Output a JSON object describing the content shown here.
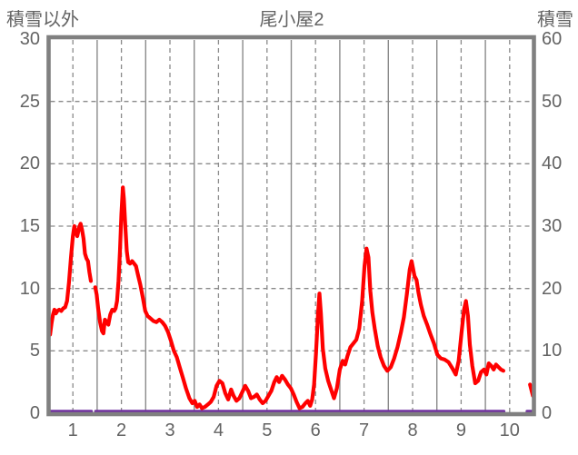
{
  "header": {
    "left_axis_title": "積雪以外",
    "title": "尾小屋2",
    "right_axis_title": "積雪"
  },
  "colors": {
    "series_main": "#FF0000",
    "series_snow": "#7030A0",
    "frame": "#808080",
    "grid": "#8A8A8A",
    "text": "#636363",
    "background": "#FFFFFF"
  },
  "chart_data": {
    "type": "line",
    "title": "尾小屋2",
    "left_axis": {
      "label": "積雪以外",
      "min": 0,
      "max": 30,
      "ticks": [
        30,
        25,
        20,
        15,
        10,
        5,
        0
      ]
    },
    "right_axis": {
      "label": "積雪",
      "min": 0,
      "max": 60,
      "ticks": [
        60,
        50,
        40,
        30,
        20,
        10,
        0
      ]
    },
    "x_axis": {
      "min": 0.5,
      "max": 10.5,
      "ticks": [
        1,
        2,
        3,
        4,
        5,
        6,
        7,
        8,
        9,
        10
      ]
    },
    "grid": {
      "horizontal_dashed_at": [
        5,
        10,
        15,
        20,
        25
      ],
      "vertical_dashed_at_ticks": true,
      "vertical_solid_at_half_boundaries": true,
      "legend": "none"
    },
    "series": [
      {
        "name": "積雪",
        "axis": "right",
        "color": "#7030A0",
        "stroke_width": 3.4,
        "segments": [
          [
            [
              0.53,
              0
            ],
            [
              1.38,
              0
            ]
          ],
          [
            [
              1.47,
              0
            ],
            [
              9.88,
              0
            ]
          ],
          [
            [
              10.36,
              0
            ],
            [
              10.5,
              0
            ]
          ]
        ]
      },
      {
        "name": "積雪以外",
        "axis": "left",
        "color": "#FF0000",
        "stroke_width": 4.2,
        "segments": [
          [
            [
              0.53,
              6.3
            ],
            [
              0.56,
              7.2
            ],
            [
              0.59,
              7.9
            ],
            [
              0.62,
              8.3
            ],
            [
              0.65,
              8.0
            ],
            [
              0.68,
              8.2
            ],
            [
              0.72,
              8.3
            ],
            [
              0.76,
              8.2
            ],
            [
              0.8,
              8.4
            ],
            [
              0.84,
              8.5
            ],
            [
              0.88,
              9.0
            ],
            [
              0.92,
              10.5
            ],
            [
              0.96,
              12.5
            ],
            [
              1.0,
              14.2
            ],
            [
              1.03,
              15.0
            ],
            [
              1.06,
              14.5
            ],
            [
              1.09,
              14.2
            ],
            [
              1.13,
              14.9
            ],
            [
              1.16,
              15.2
            ],
            [
              1.19,
              14.7
            ],
            [
              1.22,
              14.0
            ],
            [
              1.25,
              12.8
            ],
            [
              1.28,
              12.4
            ],
            [
              1.31,
              12.2
            ],
            [
              1.34,
              11.3
            ],
            [
              1.37,
              10.6
            ]
          ],
          [
            [
              1.46,
              10.1
            ],
            [
              1.49,
              9.5
            ],
            [
              1.52,
              8.4
            ],
            [
              1.56,
              7.3
            ],
            [
              1.6,
              6.6
            ],
            [
              1.63,
              6.4
            ],
            [
              1.66,
              7.5
            ],
            [
              1.7,
              7.3
            ],
            [
              1.73,
              7.1
            ],
            [
              1.77,
              7.9
            ],
            [
              1.81,
              8.3
            ],
            [
              1.85,
              8.2
            ],
            [
              1.88,
              8.4
            ],
            [
              1.91,
              9.0
            ],
            [
              1.94,
              10.6
            ],
            [
              1.97,
              13.0
            ],
            [
              2.0,
              16.0
            ],
            [
              2.03,
              18.1
            ],
            [
              2.05,
              17.2
            ],
            [
              2.08,
              15.0
            ],
            [
              2.11,
              13.0
            ],
            [
              2.14,
              12.1
            ],
            [
              2.18,
              12.0
            ],
            [
              2.22,
              12.2
            ],
            [
              2.26,
              12.0
            ],
            [
              2.3,
              11.8
            ],
            [
              2.34,
              11.1
            ],
            [
              2.39,
              10.3
            ],
            [
              2.44,
              9.3
            ],
            [
              2.49,
              8.2
            ],
            [
              2.54,
              7.8
            ],
            [
              2.6,
              7.6
            ],
            [
              2.66,
              7.4
            ],
            [
              2.72,
              7.3
            ],
            [
              2.78,
              7.5
            ],
            [
              2.84,
              7.3
            ],
            [
              2.9,
              7.0
            ],
            [
              2.96,
              6.5
            ],
            [
              3.02,
              5.8
            ],
            [
              3.08,
              5.0
            ],
            [
              3.14,
              4.5
            ],
            [
              3.2,
              3.7
            ],
            [
              3.27,
              2.8
            ],
            [
              3.33,
              2.0
            ],
            [
              3.4,
              1.2
            ],
            [
              3.46,
              0.8
            ],
            [
              3.51,
              1.0
            ],
            [
              3.56,
              0.5
            ],
            [
              3.61,
              0.7
            ],
            [
              3.66,
              0.4
            ],
            [
              3.72,
              0.5
            ],
            [
              3.78,
              0.7
            ],
            [
              3.84,
              0.9
            ],
            [
              3.9,
              1.3
            ],
            [
              3.96,
              2.2
            ],
            [
              4.02,
              2.6
            ],
            [
              4.08,
              2.4
            ],
            [
              4.14,
              1.6
            ],
            [
              4.2,
              1.1
            ],
            [
              4.26,
              1.9
            ],
            [
              4.31,
              1.4
            ],
            [
              4.37,
              1.0
            ],
            [
              4.43,
              1.2
            ],
            [
              4.49,
              1.7
            ],
            [
              4.55,
              2.2
            ],
            [
              4.61,
              1.8
            ],
            [
              4.67,
              1.2
            ],
            [
              4.73,
              1.3
            ],
            [
              4.79,
              1.5
            ],
            [
              4.85,
              1.1
            ],
            [
              4.91,
              0.8
            ],
            [
              4.97,
              1.0
            ],
            [
              5.03,
              1.4
            ],
            [
              5.09,
              1.8
            ],
            [
              5.15,
              2.5
            ],
            [
              5.2,
              2.9
            ],
            [
              5.25,
              2.5
            ],
            [
              5.31,
              3.0
            ],
            [
              5.37,
              2.7
            ],
            [
              5.43,
              2.3
            ],
            [
              5.49,
              2.0
            ],
            [
              5.55,
              1.5
            ],
            [
              5.61,
              0.9
            ],
            [
              5.67,
              0.4
            ],
            [
              5.73,
              0.5
            ],
            [
              5.79,
              0.8
            ],
            [
              5.84,
              1.0
            ],
            [
              5.89,
              0.6
            ],
            [
              5.93,
              1.1
            ],
            [
              5.97,
              2.3
            ],
            [
              6.01,
              4.8
            ],
            [
              6.05,
              7.9
            ],
            [
              6.08,
              9.6
            ],
            [
              6.11,
              8.0
            ],
            [
              6.15,
              5.2
            ],
            [
              6.2,
              3.6
            ],
            [
              6.26,
              2.6
            ],
            [
              6.32,
              1.9
            ],
            [
              6.38,
              1.2
            ],
            [
              6.44,
              2.0
            ],
            [
              6.5,
              3.5
            ],
            [
              6.56,
              4.2
            ],
            [
              6.61,
              3.9
            ],
            [
              6.66,
              4.6
            ],
            [
              6.72,
              5.3
            ],
            [
              6.78,
              5.6
            ],
            [
              6.84,
              5.9
            ],
            [
              6.9,
              6.8
            ],
            [
              6.96,
              9.0
            ],
            [
              7.01,
              11.8
            ],
            [
              7.05,
              13.2
            ],
            [
              7.09,
              12.5
            ],
            [
              7.13,
              9.8
            ],
            [
              7.17,
              8.1
            ],
            [
              7.22,
              6.8
            ],
            [
              7.28,
              5.4
            ],
            [
              7.34,
              4.5
            ],
            [
              7.41,
              3.8
            ],
            [
              7.48,
              3.4
            ],
            [
              7.55,
              3.7
            ],
            [
              7.62,
              4.4
            ],
            [
              7.69,
              5.3
            ],
            [
              7.76,
              6.5
            ],
            [
              7.82,
              7.7
            ],
            [
              7.88,
              9.5
            ],
            [
              7.94,
              11.5
            ],
            [
              7.98,
              12.2
            ],
            [
              8.01,
              11.6
            ],
            [
              8.04,
              11.0
            ],
            [
              8.08,
              10.7
            ],
            [
              8.12,
              9.7
            ],
            [
              8.17,
              8.7
            ],
            [
              8.23,
              7.8
            ],
            [
              8.3,
              7.1
            ],
            [
              8.37,
              6.3
            ],
            [
              8.44,
              5.6
            ],
            [
              8.51,
              4.7
            ],
            [
              8.58,
              4.4
            ],
            [
              8.66,
              4.3
            ],
            [
              8.74,
              4.1
            ],
            [
              8.82,
              3.6
            ],
            [
              8.89,
              3.1
            ],
            [
              8.95,
              4.2
            ],
            [
              9.01,
              6.5
            ],
            [
              9.06,
              8.3
            ],
            [
              9.1,
              9.0
            ],
            [
              9.14,
              7.8
            ],
            [
              9.18,
              5.5
            ],
            [
              9.23,
              3.8
            ],
            [
              9.29,
              2.4
            ],
            [
              9.35,
              2.6
            ],
            [
              9.41,
              3.3
            ],
            [
              9.47,
              3.5
            ],
            [
              9.52,
              3.1
            ],
            [
              9.57,
              4.0
            ],
            [
              9.62,
              3.8
            ],
            [
              9.67,
              3.5
            ],
            [
              9.72,
              3.9
            ],
            [
              9.77,
              3.7
            ],
            [
              9.82,
              3.5
            ],
            [
              9.87,
              3.4
            ]
          ],
          [
            [
              10.42,
              2.3
            ],
            [
              10.48,
              1.4
            ]
          ]
        ]
      }
    ]
  }
}
